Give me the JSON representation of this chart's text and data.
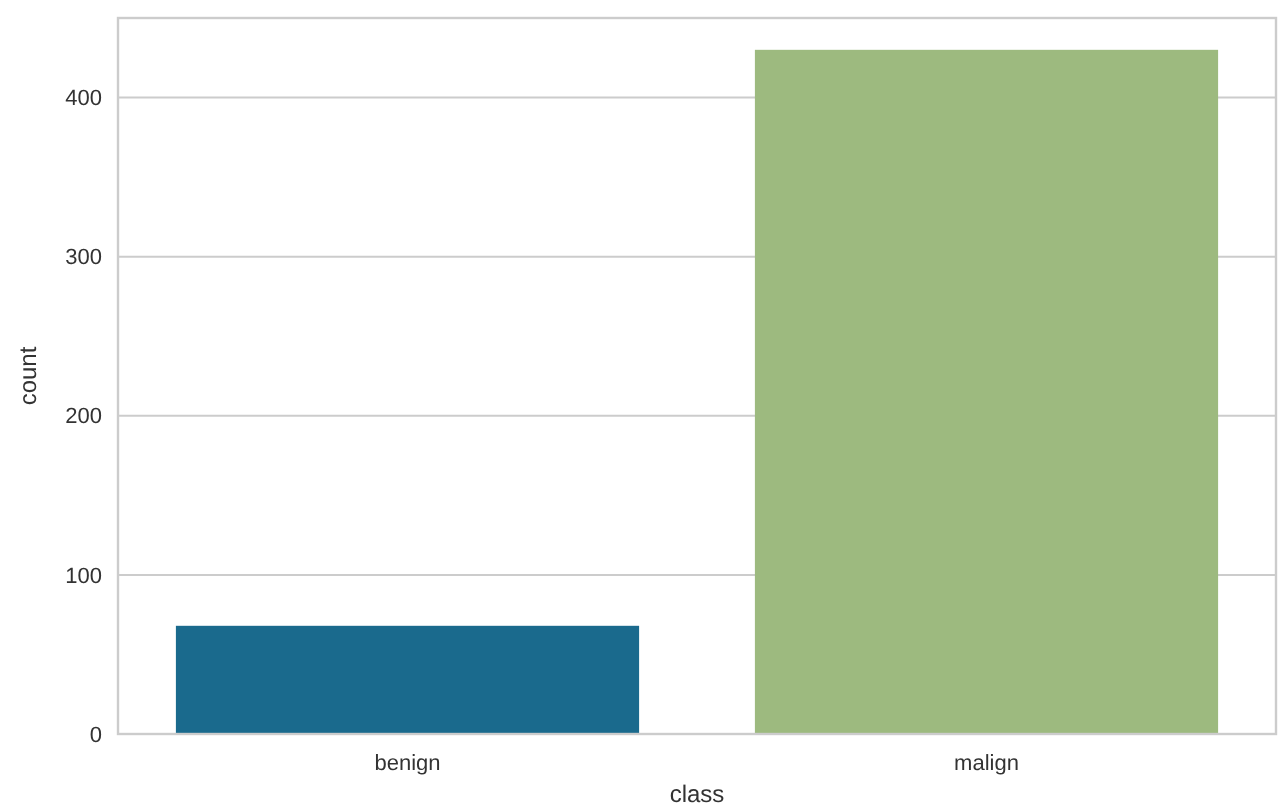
{
  "chart_data": {
    "type": "bar",
    "categories": [
      "benign",
      "malign"
    ],
    "values": [
      68,
      430
    ],
    "colors": [
      "#1a6a8d",
      "#9dba7f"
    ],
    "xlabel": "class",
    "ylabel": "count",
    "ylim": [
      0,
      450
    ],
    "yticks": [
      0,
      100,
      200,
      300,
      400
    ],
    "grid": "y"
  }
}
